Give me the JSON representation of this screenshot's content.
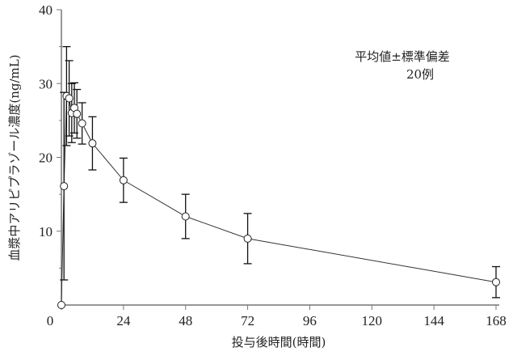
{
  "chart_data": {
    "type": "line",
    "title": "",
    "xlabel": "投与後時間(時間)",
    "ylabel": "血漿中アリピプラゾール濃度(ng/mL)",
    "xlim": [
      0,
      168
    ],
    "ylim": [
      0,
      40
    ],
    "xticks": [
      0,
      24,
      48,
      72,
      96,
      120,
      144,
      168
    ],
    "yticks": [
      10,
      20,
      30,
      40
    ],
    "legend": {
      "line1": "平均値±標準偏差",
      "line2": "20例",
      "position": "top-right"
    },
    "series": [
      {
        "name": "平均値",
        "x": [
          0,
          1,
          2,
          3,
          4,
          5,
          6,
          8,
          12,
          24,
          48,
          72,
          168
        ],
        "y": [
          0,
          16.1,
          28.3,
          28.0,
          26.0,
          26.7,
          25.9,
          24.6,
          21.9,
          16.9,
          12.0,
          9.0,
          3.1
        ],
        "sd": [
          0,
          12.7,
          6.7,
          5.1,
          4.0,
          3.4,
          3.3,
          2.8,
          3.6,
          3.0,
          3.0,
          3.4,
          2.1
        ]
      }
    ]
  }
}
